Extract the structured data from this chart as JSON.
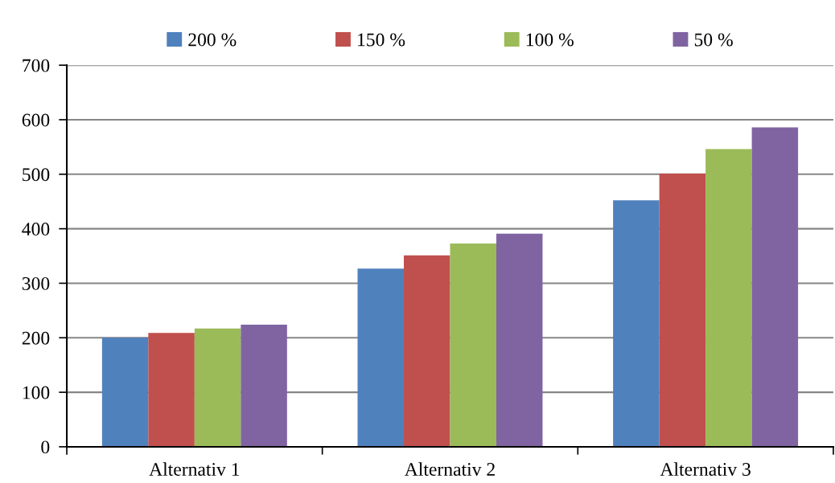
{
  "chart_data": {
    "type": "bar",
    "categories": [
      "Alternativ 1",
      "Alternativ 2",
      "Alternativ 3"
    ],
    "series": [
      {
        "name": "200 %",
        "color": "#4f81bd",
        "values": [
          200,
          327,
          452
        ]
      },
      {
        "name": "150 %",
        "color": "#c0504d",
        "values": [
          209,
          351,
          501
        ]
      },
      {
        "name": "100 %",
        "color": "#9bbb59",
        "values": [
          217,
          373,
          546
        ]
      },
      {
        "name": "50 %",
        "color": "#8064a2",
        "values": [
          224,
          391,
          586
        ]
      }
    ],
    "ylim": [
      0,
      700
    ],
    "yticks": [
      0,
      100,
      200,
      300,
      400,
      500,
      600,
      700
    ],
    "grid": "y",
    "legend": "top"
  }
}
